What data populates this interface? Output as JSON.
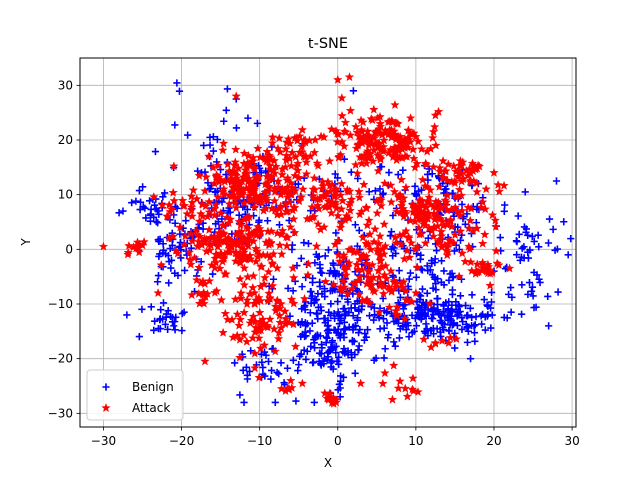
{
  "chart_data": {
    "type": "scatter",
    "title": "t-SNE",
    "xlabel": "X",
    "ylabel": "Y",
    "xlim": [
      -33,
      30.5
    ],
    "ylim": [
      -32.5,
      35
    ],
    "xticks": [
      -30,
      -20,
      -10,
      0,
      10,
      20,
      30
    ],
    "yticks": [
      -30,
      -20,
      -10,
      0,
      10,
      20,
      30
    ],
    "grid": true,
    "legend_position": "lower-left",
    "series": [
      {
        "name": "Benign",
        "color": "#0000ff",
        "marker": "plus",
        "clusters": [
          {
            "cx": -1,
            "cy": -14,
            "sx": 3,
            "sy": 5,
            "n": 220
          },
          {
            "cx": 12,
            "cy": -12,
            "sx": 4.5,
            "sy": 2.5,
            "n": 220
          },
          {
            "cx": -13,
            "cy": 8,
            "sx": 3,
            "sy": 4,
            "n": 110
          },
          {
            "cx": -21,
            "cy": 0,
            "sx": 2,
            "sy": 4,
            "n": 60
          },
          {
            "cx": -22,
            "cy": -13,
            "sx": 1.5,
            "sy": 1.5,
            "n": 25
          },
          {
            "cx": -24,
            "cy": 7,
            "sx": 2,
            "sy": 2,
            "n": 30
          },
          {
            "cx": -15,
            "cy": 20,
            "sx": 4,
            "sy": 4,
            "n": 25
          },
          {
            "cx": 16,
            "cy": 6,
            "sx": 2.5,
            "sy": 3,
            "n": 50
          },
          {
            "cx": 24,
            "cy": 1,
            "sx": 2,
            "sy": 2,
            "n": 30
          },
          {
            "cx": 25,
            "cy": -7,
            "sx": 2,
            "sy": 2,
            "n": 15
          },
          {
            "cx": -10,
            "cy": -22,
            "sx": 2,
            "sy": 2.5,
            "n": 30
          },
          {
            "cx": 1,
            "cy": -2,
            "sx": 4,
            "sy": 4,
            "n": 70
          },
          {
            "cx": 12,
            "cy": -3,
            "sx": 3,
            "sy": 3,
            "n": 40
          },
          {
            "cx": 13,
            "cy": 13,
            "sx": 2,
            "sy": 2,
            "n": 20
          },
          {
            "cx": 5,
            "cy": 12,
            "sx": 4,
            "sy": 3,
            "n": 30
          },
          {
            "cx": -6,
            "cy": 8,
            "sx": 3,
            "sy": 4,
            "n": 30
          }
        ],
        "points": [
          [
            -13,
            27.5
          ],
          [
            2,
            29
          ],
          [
            28,
            12.5
          ],
          [
            -27.5,
            7
          ],
          [
            27,
            -14
          ],
          [
            29.5,
            -1
          ],
          [
            -15.5,
            16
          ],
          [
            -11.5,
            24
          ],
          [
            -8,
            -28
          ],
          [
            -3,
            -28
          ],
          [
            17,
            -20
          ],
          [
            -21,
            -14
          ],
          [
            18,
            12
          ],
          [
            20,
            -4
          ],
          [
            24,
            10.5
          ],
          [
            -12,
            -28
          ],
          [
            -27,
            -12
          ]
        ]
      },
      {
        "name": "Attack",
        "color": "#ff0000",
        "marker": "star",
        "clusters": [
          {
            "cx": -10,
            "cy": 12,
            "sx": 3.5,
            "sy": 3,
            "n": 200
          },
          {
            "cx": -13,
            "cy": 1,
            "sx": 3.5,
            "sy": 3,
            "n": 180
          },
          {
            "cx": 6,
            "cy": 19.5,
            "sx": 3.5,
            "sy": 2.5,
            "n": 160
          },
          {
            "cx": 12,
            "cy": 6,
            "sx": 3.5,
            "sy": 3.5,
            "n": 170
          },
          {
            "cx": -10,
            "cy": -12,
            "sx": 2.5,
            "sy": 4,
            "n": 90
          },
          {
            "cx": 0,
            "cy": 9,
            "sx": 2.5,
            "sy": 2.5,
            "n": 70
          },
          {
            "cx": 4,
            "cy": -6,
            "sx": 3,
            "sy": 2,
            "n": 60
          },
          {
            "cx": 16,
            "cy": 14,
            "sx": 2,
            "sy": 1.5,
            "n": 40
          },
          {
            "cx": -5,
            "cy": 19,
            "sx": 2,
            "sy": 1.5,
            "n": 30
          },
          {
            "cx": -19,
            "cy": 8,
            "sx": 2,
            "sy": 1.5,
            "n": 25
          },
          {
            "cx": 19,
            "cy": -4,
            "sx": 1,
            "sy": 1,
            "n": 25
          },
          {
            "cx": 3,
            "cy": 0,
            "sx": 2.5,
            "sy": 2,
            "n": 40
          },
          {
            "cx": -17,
            "cy": -8,
            "sx": 1,
            "sy": 1,
            "n": 15
          },
          {
            "cx": -1,
            "cy": -28,
            "sx": 0.8,
            "sy": 1,
            "n": 12
          },
          {
            "cx": -6,
            "cy": -26,
            "sx": 0.7,
            "sy": 1,
            "n": 8
          },
          {
            "cx": 9,
            "cy": -25,
            "sx": 2,
            "sy": 1.5,
            "n": 12
          },
          {
            "cx": -25.5,
            "cy": 0,
            "sx": 0.8,
            "sy": 0.7,
            "n": 12
          },
          {
            "cx": 13,
            "cy": -17,
            "sx": 1,
            "sy": 1,
            "n": 8
          },
          {
            "cx": 8,
            "cy": -11,
            "sx": 1,
            "sy": 1,
            "n": 10
          }
        ],
        "points": [
          [
            -30,
            0.5
          ],
          [
            0,
            31
          ],
          [
            1.5,
            31.5
          ],
          [
            -17,
            -20.5
          ],
          [
            22,
            -3.5
          ],
          [
            12.5,
            24.5
          ],
          [
            7,
            -27.5
          ],
          [
            -3.5,
            17
          ],
          [
            -3,
            13
          ],
          [
            -16.5,
            17
          ],
          [
            -13,
            28
          ],
          [
            20,
            14
          ],
          [
            19,
            11
          ],
          [
            10,
            -8
          ],
          [
            -23,
            -8
          ]
        ]
      }
    ]
  }
}
